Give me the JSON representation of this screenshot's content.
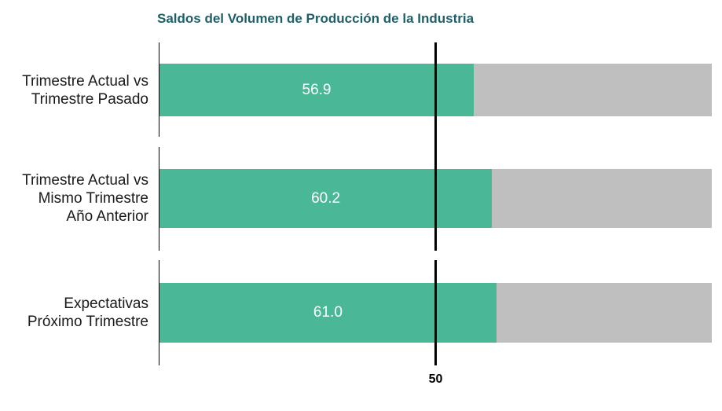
{
  "chart_data": {
    "type": "bar",
    "orientation": "horizontal",
    "title": "Saldos del Volumen de Producción de la Industria",
    "categories": [
      "Trimestre Actual vs\nTrimestre Pasado",
      "Trimestre Actual vs\nMismo Trimestre\nAño Anterior",
      "Expectativas\nPróximo Trimestre"
    ],
    "values": [
      56.9,
      60.2,
      61.0
    ],
    "value_labels": [
      "56.9",
      "60.2",
      "61.0"
    ],
    "xlim": [
      0,
      100
    ],
    "reference_line": {
      "value": 50,
      "label": "50"
    },
    "colors": {
      "fill": "#4ab896",
      "remainder": "#bfbfbf",
      "title": "#1e5f68"
    }
  }
}
